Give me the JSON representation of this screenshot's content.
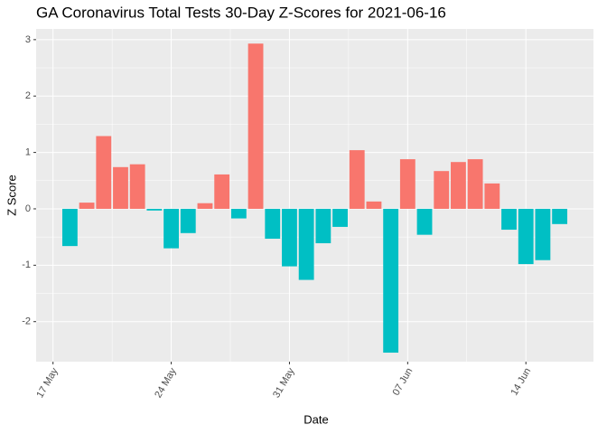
{
  "chart_data": {
    "type": "bar",
    "title": "GA Coronavirus Total Tests 30-Day Z-Scores for 2021-06-16",
    "x_label": "Date",
    "y_label": "Z Score",
    "x": [
      "2021-05-18",
      "2021-05-19",
      "2021-05-20",
      "2021-05-21",
      "2021-05-22",
      "2021-05-23",
      "2021-05-24",
      "2021-05-25",
      "2021-05-26",
      "2021-05-27",
      "2021-05-28",
      "2021-05-29",
      "2021-05-30",
      "2021-05-31",
      "2021-06-01",
      "2021-06-02",
      "2021-06-03",
      "2021-06-04",
      "2021-06-05",
      "2021-06-06",
      "2021-06-07",
      "2021-06-08",
      "2021-06-09",
      "2021-06-10",
      "2021-06-11",
      "2021-06-12",
      "2021-06-13",
      "2021-06-14",
      "2021-06-15",
      "2021-06-16"
    ],
    "values": [
      -0.66,
      0.11,
      1.29,
      0.74,
      0.79,
      -0.03,
      -0.7,
      -0.43,
      0.1,
      0.61,
      -0.17,
      2.93,
      -0.53,
      -1.02,
      -1.26,
      -0.61,
      -0.32,
      1.04,
      0.13,
      -2.55,
      0.88,
      -0.46,
      0.67,
      0.83,
      0.88,
      0.45,
      -0.37,
      -0.98,
      -0.91,
      -0.27
    ],
    "colors": {
      "positive": "#F8766D",
      "negative": "#00BFC4"
    },
    "xlim": [
      "2021-05-16",
      "2021-06-18"
    ],
    "xticks": [
      {
        "value": "2021-05-17",
        "label": "17 May"
      },
      {
        "value": "2021-05-24",
        "label": "24 May"
      },
      {
        "value": "2021-05-31",
        "label": "31 May"
      },
      {
        "value": "2021-06-07",
        "label": "07 Jun"
      },
      {
        "value": "2021-06-14",
        "label": "14 Jun"
      }
    ],
    "ylim": [
      -2.71,
      3.19
    ],
    "yticks": [
      -2,
      -1,
      0,
      1,
      2,
      3
    ],
    "grid": true
  }
}
